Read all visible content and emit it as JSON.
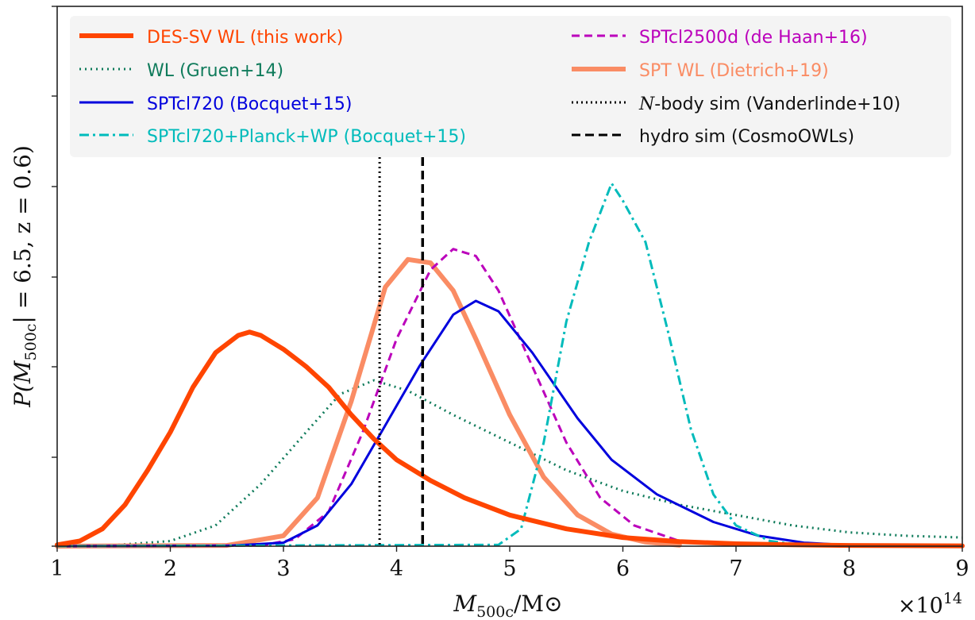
{
  "chart_data": {
    "type": "line",
    "xlabel": "M_500c/M_⊙",
    "ylabel": "P(M_500c| = 6.5, z = 0.6)",
    "x_multiplier": "×10^14",
    "xlim": [
      1,
      9
    ],
    "ylim": [
      0,
      1
    ],
    "xticks": [
      1,
      2,
      3,
      4,
      5,
      6,
      7,
      8,
      9
    ],
    "grid": false,
    "legend_position": "top",
    "series": [
      {
        "name": "DES-SV WL (this work)",
        "color": "#ff4500",
        "style": "solid-thick",
        "x": [
          1.0,
          1.2,
          1.4,
          1.6,
          1.8,
          2.0,
          2.2,
          2.4,
          2.6,
          2.7,
          2.8,
          3.0,
          3.2,
          3.4,
          3.6,
          3.8,
          4.0,
          4.3,
          4.6,
          5.0,
          5.5,
          6.0,
          6.5,
          7.0,
          7.5,
          8.0,
          9.0
        ],
        "y": [
          0.004,
          0.015,
          0.05,
          0.12,
          0.22,
          0.33,
          0.46,
          0.56,
          0.61,
          0.62,
          0.61,
          0.57,
          0.52,
          0.46,
          0.38,
          0.31,
          0.25,
          0.19,
          0.14,
          0.09,
          0.05,
          0.025,
          0.013,
          0.007,
          0.004,
          0.002,
          0.001
        ]
      },
      {
        "name": "WL (Gruen+14)",
        "color": "#0f7b5b",
        "style": "dotted",
        "x": [
          1.0,
          1.5,
          2.0,
          2.4,
          2.8,
          3.2,
          3.5,
          3.8,
          4.1,
          4.5,
          5.0,
          5.5,
          6.0,
          6.5,
          7.0,
          7.5,
          8.0,
          8.5,
          9.0
        ],
        "y": [
          0.0,
          0.003,
          0.015,
          0.06,
          0.18,
          0.33,
          0.44,
          0.48,
          0.45,
          0.38,
          0.3,
          0.22,
          0.16,
          0.12,
          0.09,
          0.06,
          0.04,
          0.03,
          0.025
        ]
      },
      {
        "name": "SPTcl720 (Bocquet+15)",
        "color": "#0000dd",
        "style": "solid",
        "x": [
          1.0,
          2.5,
          3.0,
          3.3,
          3.6,
          3.9,
          4.2,
          4.5,
          4.7,
          4.9,
          5.2,
          5.6,
          5.9,
          6.3,
          6.8,
          7.2,
          7.6,
          8.0
        ],
        "y": [
          0.0,
          0.001,
          0.01,
          0.06,
          0.18,
          0.35,
          0.52,
          0.67,
          0.71,
          0.68,
          0.56,
          0.37,
          0.25,
          0.15,
          0.07,
          0.03,
          0.01,
          0.003
        ]
      },
      {
        "name": "SPTcl720+Planck+WP (Bocquet+15)",
        "color": "#00bbbb",
        "style": "dashdot",
        "x": [
          1.0,
          4.9,
          5.1,
          5.3,
          5.5,
          5.7,
          5.9,
          6.0,
          6.2,
          6.4,
          6.6,
          6.8,
          7.0,
          7.3,
          7.6
        ],
        "y": [
          0.0,
          0.004,
          0.05,
          0.3,
          0.65,
          0.88,
          1.05,
          1.0,
          0.88,
          0.62,
          0.34,
          0.15,
          0.06,
          0.015,
          0.002
        ]
      },
      {
        "name": "SPTcl2500d (de Haan+16)",
        "color": "#bb00bb",
        "style": "dashed",
        "x": [
          1.0,
          2.8,
          3.1,
          3.4,
          3.7,
          4.0,
          4.3,
          4.5,
          4.7,
          4.9,
          5.2,
          5.5,
          5.8,
          6.1,
          6.5,
          7.0
        ],
        "y": [
          0.0,
          0.002,
          0.02,
          0.1,
          0.33,
          0.6,
          0.8,
          0.86,
          0.84,
          0.74,
          0.52,
          0.3,
          0.14,
          0.06,
          0.015,
          0.002
        ]
      },
      {
        "name": "SPT WL (Dietrich+19)",
        "color": "#fa8c64",
        "style": "solid-thick",
        "x": [
          1.0,
          2.5,
          3.0,
          3.3,
          3.6,
          3.9,
          4.1,
          4.3,
          4.5,
          4.7,
          5.0,
          5.3,
          5.6,
          5.9,
          6.2,
          6.5
        ],
        "y": [
          0.0,
          0.002,
          0.03,
          0.14,
          0.42,
          0.75,
          0.83,
          0.82,
          0.74,
          0.6,
          0.38,
          0.2,
          0.09,
          0.035,
          0.012,
          0.003
        ]
      },
      {
        "name": "N-body sim (Vanderlinde+10)",
        "color": "#000000",
        "style": "vline-dotted",
        "x_value": 3.85
      },
      {
        "name": "hydro sim (CosmoOWLs)",
        "color": "#000000",
        "style": "vline-dashed",
        "x_value": 4.23
      }
    ]
  }
}
